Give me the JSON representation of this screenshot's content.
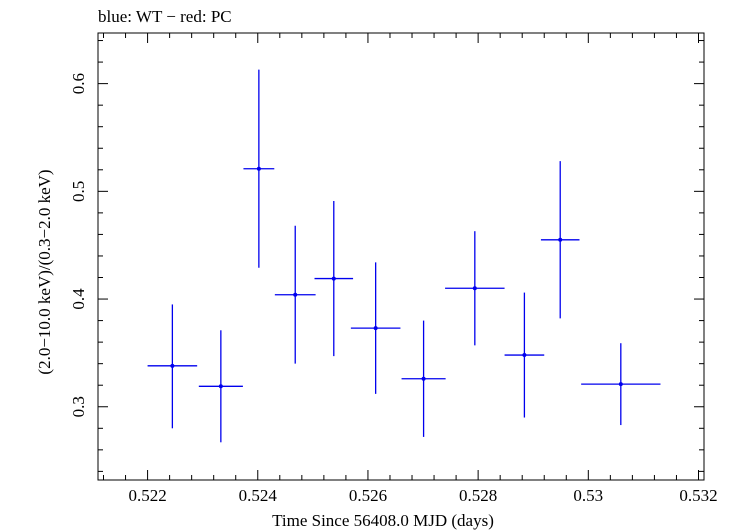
{
  "chart_data": {
    "type": "scatter",
    "title": "blue: WT − red: PC",
    "xlabel": "Time Since 56408.0 MJD (days)",
    "ylabel": "(2.0−10.0 keV)/(0.3−2.0 keV)",
    "xlim": [
      0.5211,
      0.5321
    ],
    "ylim": [
      0.232,
      0.647
    ],
    "x_ticks": [
      0.522,
      0.524,
      0.526,
      0.528,
      0.53,
      0.532
    ],
    "x_tick_labels": [
      "0.522",
      "0.524",
      "0.526",
      "0.528",
      "0.53",
      "0.532"
    ],
    "y_ticks": [
      0.3,
      0.4,
      0.5,
      0.6
    ],
    "y_tick_labels": [
      "0.3",
      "0.4",
      "0.5",
      "0.6"
    ],
    "grid": false,
    "series": [
      {
        "name": "WT",
        "color": "#0000ee",
        "points": [
          {
            "x": 0.52245,
            "y": 0.338,
            "xerr": 0.00045,
            "yerr_low": 0.058,
            "yerr_high": 0.057
          },
          {
            "x": 0.52333,
            "y": 0.319,
            "xerr": 0.0004,
            "yerr_low": 0.052,
            "yerr_high": 0.052
          },
          {
            "x": 0.52402,
            "y": 0.521,
            "xerr": 0.00028,
            "yerr_low": 0.092,
            "yerr_high": 0.092
          },
          {
            "x": 0.52468,
            "y": 0.404,
            "xerr": 0.00037,
            "yerr_low": 0.064,
            "yerr_high": 0.064
          },
          {
            "x": 0.52538,
            "y": 0.419,
            "xerr": 0.00035,
            "yerr_low": 0.072,
            "yerr_high": 0.072
          },
          {
            "x": 0.52614,
            "y": 0.373,
            "xerr": 0.00045,
            "yerr_low": 0.061,
            "yerr_high": 0.061
          },
          {
            "x": 0.52701,
            "y": 0.326,
            "xerr": 0.0004,
            "yerr_low": 0.054,
            "yerr_high": 0.054
          },
          {
            "x": 0.52794,
            "y": 0.41,
            "xerr": 0.00054,
            "yerr_low": 0.053,
            "yerr_high": 0.053
          },
          {
            "x": 0.52884,
            "y": 0.348,
            "xerr": 0.00036,
            "yerr_low": 0.058,
            "yerr_high": 0.058
          },
          {
            "x": 0.52949,
            "y": 0.455,
            "xerr": 0.00035,
            "yerr_low": 0.073,
            "yerr_high": 0.073
          },
          {
            "x": 0.53059,
            "y": 0.321,
            "xerr": 0.00072,
            "yerr_low": 0.038,
            "yerr_high": 0.038
          }
        ]
      }
    ]
  }
}
